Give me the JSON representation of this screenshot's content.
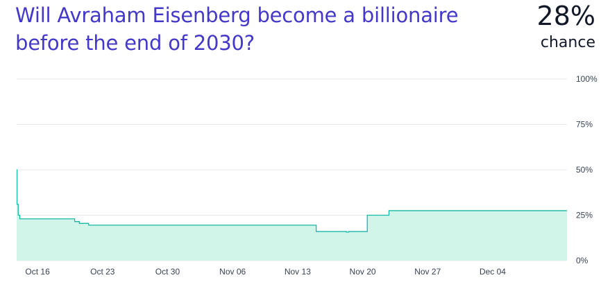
{
  "question": {
    "title": "Will Avraham Eisenberg become a billionaire before the end of 2030?",
    "probability": "28%",
    "probability_label": "chance"
  },
  "colors": {
    "title": "#4338ca",
    "line": "#14b8a6",
    "fill": "#d1f5e8",
    "grid": "#e5e7eb"
  },
  "chart_data": {
    "type": "area",
    "title": "",
    "xlabel": "",
    "ylabel": "",
    "ylim": [
      0,
      100
    ],
    "grid": true,
    "yticks": [
      {
        "value": 0,
        "label": "0%"
      },
      {
        "value": 25,
        "label": "25%"
      },
      {
        "value": 50,
        "label": "50%"
      },
      {
        "value": 75,
        "label": "75%"
      },
      {
        "value": 100,
        "label": "100%"
      }
    ],
    "xticks": [
      {
        "date": "2023-10-16",
        "label": "Oct 16"
      },
      {
        "date": "2023-10-23",
        "label": "Oct 23"
      },
      {
        "date": "2023-10-30",
        "label": "Oct 30"
      },
      {
        "date": "2023-11-06",
        "label": "Nov 06"
      },
      {
        "date": "2023-11-13",
        "label": "Nov 13"
      },
      {
        "date": "2023-11-20",
        "label": "Nov 20"
      },
      {
        "date": "2023-11-27",
        "label": "Nov 27"
      },
      {
        "date": "2023-12-04",
        "label": "Dec 04"
      }
    ],
    "xlim": [
      "2023-10-13T18:00",
      "2023-12-12T00:00"
    ],
    "series": [
      {
        "points": [
          [
            "2023-10-13T18:00",
            50
          ],
          [
            "2023-10-13T19:00",
            31
          ],
          [
            "2023-10-13T22:00",
            25
          ],
          [
            "2023-10-14T02:00",
            23
          ],
          [
            "2023-10-20T00:00",
            21.5
          ],
          [
            "2023-10-20T12:00",
            20.5
          ],
          [
            "2023-10-21T12:00",
            19.5
          ],
          [
            "2023-11-15T00:00",
            16
          ],
          [
            "2023-11-18T06:00",
            15.7
          ],
          [
            "2023-11-18T12:00",
            16
          ],
          [
            "2023-11-20T12:00",
            25
          ],
          [
            "2023-11-22T20:00",
            27.5
          ],
          [
            "2023-12-12T00:00",
            27.5
          ]
        ]
      }
    ]
  }
}
